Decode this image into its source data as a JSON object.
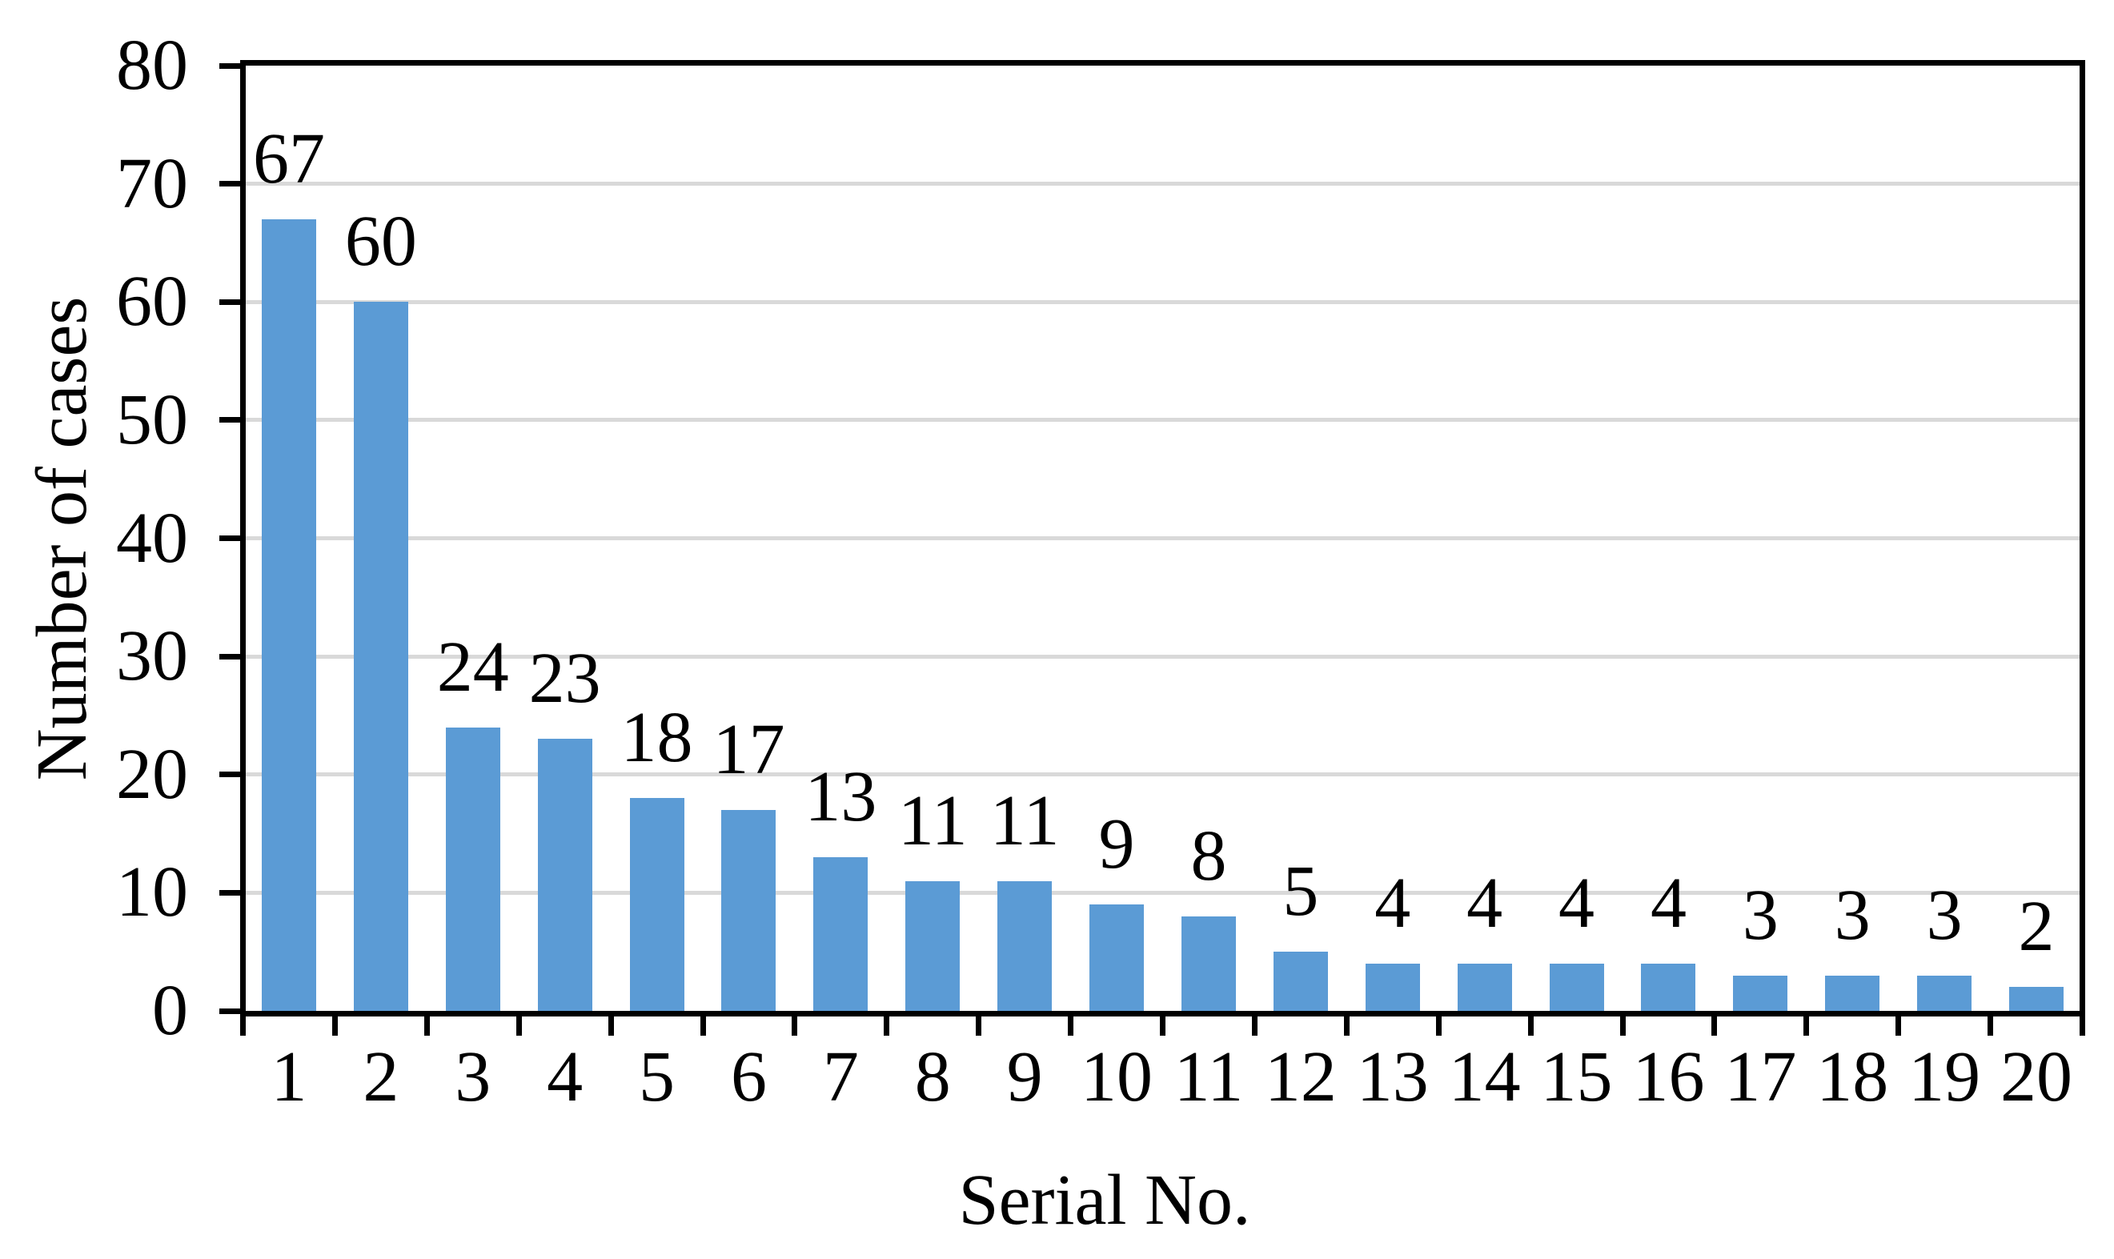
{
  "chart_data": {
    "type": "bar",
    "title": "",
    "xlabel": "Serial No.",
    "ylabel": "Number of cases",
    "categories": [
      "1",
      "2",
      "3",
      "4",
      "5",
      "6",
      "7",
      "8",
      "9",
      "10",
      "11",
      "12",
      "13",
      "14",
      "15",
      "16",
      "17",
      "18",
      "19",
      "20"
    ],
    "values": [
      67,
      60,
      24,
      23,
      18,
      17,
      13,
      11,
      11,
      9,
      8,
      5,
      4,
      4,
      4,
      4,
      3,
      3,
      3,
      2
    ],
    "data_labels": [
      "67",
      "60",
      "24",
      "23",
      "18",
      "17",
      "13",
      "11",
      "11",
      "9",
      "8",
      "5",
      "4",
      "4",
      "4",
      "4",
      "3",
      "3",
      "3",
      "2"
    ],
    "ylim": [
      0,
      80
    ],
    "yticks": [
      0,
      10,
      20,
      30,
      40,
      50,
      60,
      70,
      80
    ],
    "grid": true,
    "legend": "none",
    "colors": {
      "bar": "#5B9BD5",
      "gridline": "#D9D9D9",
      "axis": "#000000",
      "text": "#000000",
      "background": "#FFFFFF"
    }
  }
}
